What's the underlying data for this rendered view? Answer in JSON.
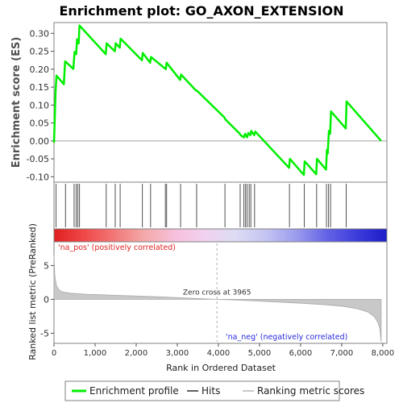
{
  "chart_data": {
    "title": "Enrichment plot: GO_AXON_EXTENSION",
    "es_panel": {
      "type": "line",
      "ylabel": "Enrichment score (ES)",
      "xlim": [
        0,
        8100
      ],
      "ylim": [
        -0.115,
        0.33
      ],
      "yticks": [
        -0.1,
        -0.05,
        0.0,
        0.05,
        0.1,
        0.15,
        0.2,
        0.25,
        0.3
      ],
      "ytick_labels": [
        "-0.10",
        "-0.05",
        "0.00",
        "0.05",
        "0.10",
        "0.15",
        "0.20",
        "0.25",
        "0.30"
      ],
      "series": [
        {
          "color": "#00ee00",
          "x": [
            0,
            40,
            60,
            240,
            270,
            470,
            500,
            540,
            560,
            600,
            620,
            1260,
            1280,
            1480,
            1500,
            1600,
            1620,
            2140,
            2160,
            2340,
            2360,
            2720,
            2740,
            3070,
            3090,
            3460,
            3480,
            4150,
            4170,
            4520,
            4540,
            4620,
            4650,
            4700,
            4730,
            4780,
            4800,
            4870,
            4900,
            5720,
            5740,
            6080,
            6100,
            6380,
            6400,
            6620,
            6640,
            6660,
            6690,
            6720,
            6740,
            7100,
            7120,
            7960
          ],
          "y": [
            -0.005,
            0.14,
            0.182,
            0.158,
            0.222,
            0.201,
            0.248,
            0.242,
            0.283,
            0.272,
            0.322,
            0.242,
            0.272,
            0.25,
            0.272,
            0.26,
            0.285,
            0.225,
            0.245,
            0.218,
            0.234,
            0.2,
            0.218,
            0.17,
            0.185,
            0.14,
            0.14,
            0.065,
            0.06,
            0.02,
            0.016,
            0.01,
            0.02,
            0.01,
            0.022,
            0.016,
            0.028,
            0.016,
            0.026,
            -0.075,
            -0.05,
            -0.095,
            -0.057,
            -0.093,
            -0.05,
            -0.08,
            -0.025,
            -0.035,
            0.028,
            0.02,
            0.082,
            0.035,
            0.11,
            0.0
          ]
        }
      ]
    },
    "hits_panel": {
      "hit_positions": [
        50,
        280,
        490,
        540,
        580,
        620,
        1270,
        1490,
        1610,
        2150,
        2350,
        2710,
        2740,
        3080,
        3470,
        4160,
        4530,
        4620,
        4660,
        4700,
        4750,
        4790,
        4880,
        5730,
        6090,
        6390,
        6630,
        6680,
        6730,
        7110
      ]
    },
    "gradient_bar": {
      "stops": [
        "#e02020",
        "#f04848",
        "#f27878",
        "#f4aaaa",
        "#f7c0dc",
        "#f0d2f0",
        "#dcdcf4",
        "#c4c4f2",
        "#9c9cee",
        "#6464e6",
        "#3c3cdc",
        "#1c1cc8"
      ]
    },
    "metric_panel": {
      "type": "area",
      "ylabel": "Ranked list metric (PreRanked)",
      "xlabel": "Rank in Ordered Dataset",
      "xlim": [
        0,
        8100
      ],
      "ylim": [
        -6.5,
        8.5
      ],
      "yticks": [
        -5,
        0,
        5
      ],
      "ytick_labels": [
        "-5",
        "0",
        "5"
      ],
      "xticks": [
        0,
        1000,
        2000,
        3000,
        4000,
        5000,
        6000,
        7000,
        8000
      ],
      "xtick_labels": [
        "0",
        "1,000",
        "2,000",
        "3,000",
        "4,000",
        "5,000",
        "6,000",
        "7,000",
        "8,000"
      ],
      "profile_x": [
        0,
        20,
        60,
        120,
        200,
        400,
        800,
        1500,
        2500,
        3500,
        3965,
        4500,
        5500,
        6500,
        7000,
        7400,
        7650,
        7800,
        7880,
        7930,
        7960
      ],
      "profile_y": [
        6.5,
        3.5,
        2.0,
        1.4,
        1.1,
        0.9,
        0.75,
        0.6,
        0.38,
        0.12,
        0.0,
        -0.12,
        -0.4,
        -0.75,
        -1.0,
        -1.4,
        -1.9,
        -2.6,
        -3.4,
        -4.3,
        -6.3
      ],
      "zero_cross_rank": 3965,
      "zero_cross_label": "Zero cross at 3965",
      "pos_label": "'na_pos' (positively correlated)",
      "neg_label": "'na_neg' (negatively correlated)"
    },
    "legend": {
      "items": [
        {
          "label": "Enrichment profile",
          "color": "#00ee00"
        },
        {
          "label": "Hits",
          "color": "#606060"
        },
        {
          "label": "Ranking metric scores",
          "color": "#c8c8c8"
        }
      ]
    }
  }
}
